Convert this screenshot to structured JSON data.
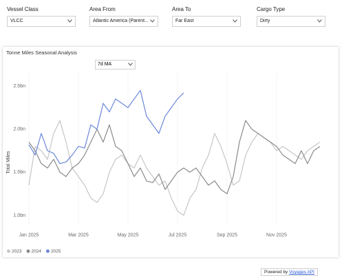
{
  "filters": [
    {
      "label": "Vessel Class",
      "value": "VLCC"
    },
    {
      "label": "Area From",
      "value": "Atlantic America (Parent..."
    },
    {
      "label": "Area To",
      "value": "Far East"
    },
    {
      "label": "Cargo Type",
      "value": "Dirty"
    }
  ],
  "chart_data": {
    "type": "line",
    "title": "Tonne Miles Seasonal Analysis",
    "smoothing": "7d MA",
    "y_label": "Total Miles",
    "categories": [
      "Jan 2025",
      null,
      null,
      null,
      null,
      null,
      null,
      null,
      "Mar 2025",
      null,
      null,
      null,
      null,
      null,
      null,
      null,
      "May 2025",
      null,
      null,
      null,
      null,
      null,
      null,
      null,
      "Jul 2025",
      null,
      null,
      null,
      null,
      null,
      null,
      null,
      "Sep 2025",
      null,
      null,
      null,
      null,
      null,
      null,
      null,
      "Nov 2025",
      null,
      null,
      null,
      null,
      null,
      null,
      null
    ],
    "ylim": [
      0.9,
      2.6
    ],
    "yticks": [
      {
        "value": 1.0,
        "label": "1.0bn"
      },
      {
        "value": 1.5,
        "label": "1.5bn"
      },
      {
        "value": 2.0,
        "label": "2.0bn"
      },
      {
        "value": 2.5,
        "label": "2.5bn"
      }
    ],
    "grid": "x",
    "legend": "bottom-left",
    "series": [
      {
        "name": "2023",
        "color": "#c6c6c6",
        "values": [
          1.35,
          1.8,
          1.75,
          1.65,
          1.95,
          2.1,
          1.85,
          1.55,
          1.45,
          1.35,
          1.2,
          1.15,
          1.25,
          1.5,
          1.65,
          1.7,
          1.6,
          1.55,
          1.7,
          1.55,
          1.45,
          1.35,
          1.4,
          1.2,
          1.05,
          1.0,
          1.2,
          1.3,
          1.55,
          1.7,
          1.95,
          1.8,
          1.6,
          1.35,
          1.4,
          1.7,
          1.85,
          1.95,
          1.9,
          1.85,
          1.75,
          1.8,
          1.75,
          1.7,
          1.65,
          1.75,
          1.8,
          1.85
        ]
      },
      {
        "name": "2024",
        "color": "#8a8a8a",
        "values": [
          1.85,
          1.75,
          1.6,
          1.55,
          1.65,
          1.5,
          1.45,
          1.55,
          1.6,
          1.7,
          1.85,
          2.0,
          1.85,
          2.05,
          1.8,
          1.75,
          1.6,
          1.45,
          1.55,
          1.4,
          1.38,
          1.48,
          1.3,
          1.4,
          1.5,
          1.55,
          1.5,
          1.55,
          1.45,
          1.35,
          1.4,
          1.3,
          1.25,
          1.45,
          1.85,
          2.1,
          2.0,
          1.95,
          1.9,
          1.85,
          1.8,
          1.7,
          1.65,
          1.6,
          1.75,
          1.6,
          1.75,
          1.8
        ]
      },
      {
        "name": "2025",
        "color": "#6a86d9",
        "values": [
          1.82,
          1.7,
          1.95,
          1.75,
          1.72,
          1.6,
          1.62,
          1.7,
          1.8,
          1.78,
          2.05,
          2.0,
          2.3,
          2.2,
          2.35,
          2.3,
          2.25,
          2.35,
          2.45,
          2.15,
          2.05,
          1.95,
          2.15,
          2.25,
          2.35,
          2.42,
          null,
          null,
          null,
          null,
          null,
          null,
          null,
          null,
          null,
          null,
          null,
          null,
          null,
          null,
          null,
          null,
          null,
          null,
          null,
          null,
          null,
          null
        ]
      }
    ]
  },
  "footer": {
    "text": "Powered by",
    "link": "Voyages API"
  }
}
